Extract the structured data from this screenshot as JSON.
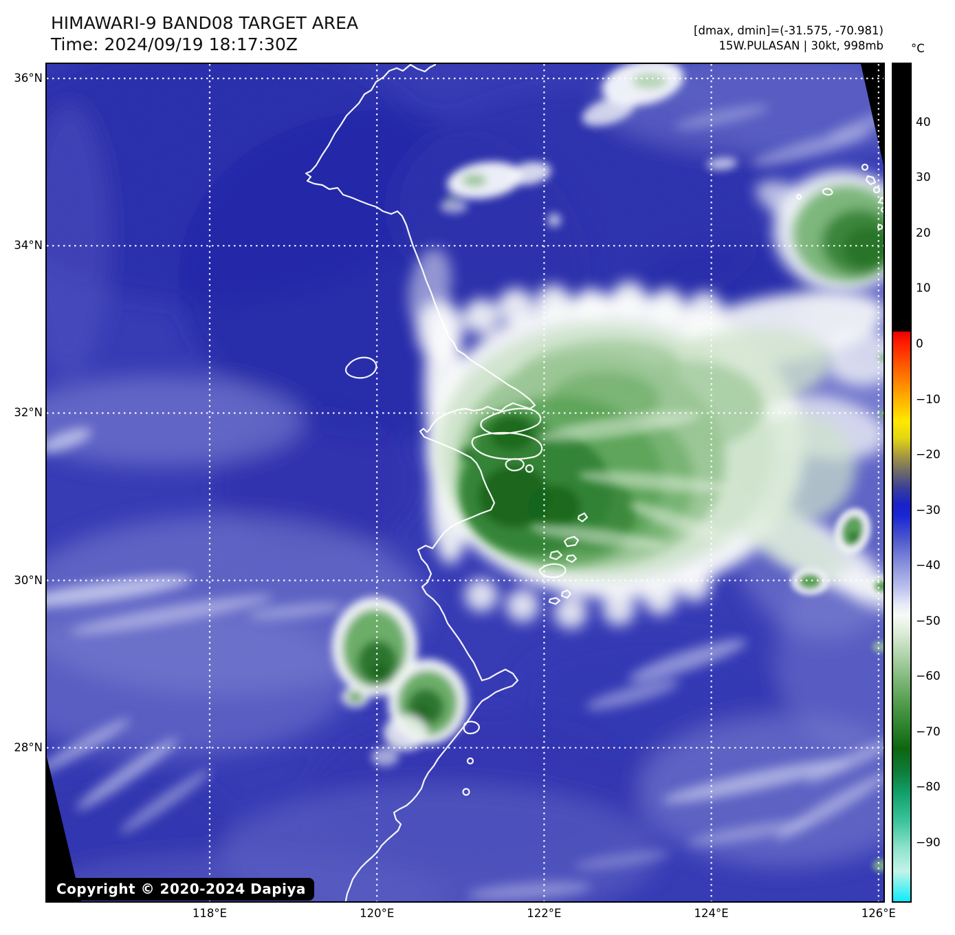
{
  "header": {
    "title": "HIMAWARI-9 BAND08 TARGET AREA",
    "time": "Time: 2024/09/19 18:17:30Z",
    "annotation_line1": "[dmax, dmin]=(-31.575, -70.981)",
    "annotation_line2": "15W.PULASAN | 30kt, 998mb"
  },
  "colorbar": {
    "unit": "°C",
    "ticks": [
      {
        "label": "40",
        "value": 40
      },
      {
        "label": "30",
        "value": 30
      },
      {
        "label": "20",
        "value": 20
      },
      {
        "label": "10",
        "value": 10
      },
      {
        "label": "0",
        "value": 0
      },
      {
        "label": "−10",
        "value": -10
      },
      {
        "label": "−20",
        "value": -20
      },
      {
        "label": "−30",
        "value": -30
      },
      {
        "label": "−40",
        "value": -40
      },
      {
        "label": "−50",
        "value": -50
      },
      {
        "label": "−60",
        "value": -60
      },
      {
        "label": "−70",
        "value": -70
      },
      {
        "label": "−80",
        "value": -80
      },
      {
        "label": "−90",
        "value": -90
      }
    ],
    "gradient_stops": [
      {
        "pct": 0,
        "color": "#000000"
      },
      {
        "pct": 31.9,
        "color": "#000000"
      },
      {
        "pct": 32.0,
        "color": "#ee0000"
      },
      {
        "pct": 33.4,
        "color": "#ff1e00"
      },
      {
        "pct": 36.8,
        "color": "#ff6a00"
      },
      {
        "pct": 40.1,
        "color": "#ffb300"
      },
      {
        "pct": 42.7,
        "color": "#ffe900"
      },
      {
        "pct": 44.7,
        "color": "#e3d513"
      },
      {
        "pct": 46.7,
        "color": "#a89a3e"
      },
      {
        "pct": 48.7,
        "color": "#6f6a68"
      },
      {
        "pct": 50.6,
        "color": "#3a3f99"
      },
      {
        "pct": 52.6,
        "color": "#1822c8"
      },
      {
        "pct": 54.0,
        "color": "#1a26d4"
      },
      {
        "pct": 56.6,
        "color": "#4a55cc"
      },
      {
        "pct": 59.9,
        "color": "#8b93dd"
      },
      {
        "pct": 62.6,
        "color": "#bcc2ec"
      },
      {
        "pct": 64.6,
        "color": "#e8ebf8"
      },
      {
        "pct": 65.9,
        "color": "#f8faf5"
      },
      {
        "pct": 67.9,
        "color": "#dcecd8"
      },
      {
        "pct": 70.5,
        "color": "#b2d5ad"
      },
      {
        "pct": 73.2,
        "color": "#83bb7e"
      },
      {
        "pct": 76.5,
        "color": "#4f9a4b"
      },
      {
        "pct": 79.8,
        "color": "#257c25"
      },
      {
        "pct": 81.8,
        "color": "#0e650f"
      },
      {
        "pct": 84.5,
        "color": "#0f7c3a"
      },
      {
        "pct": 87.1,
        "color": "#12a06b"
      },
      {
        "pct": 90.4,
        "color": "#3cc39b"
      },
      {
        "pct": 93.7,
        "color": "#8fe3cd"
      },
      {
        "pct": 96.4,
        "color": "#c3f3e8"
      },
      {
        "pct": 98.4,
        "color": "#5ff0ef"
      },
      {
        "pct": 100,
        "color": "#0cecff"
      }
    ]
  },
  "map": {
    "grid": {
      "longitudes": [
        {
          "label": "118°E",
          "deg": 118
        },
        {
          "label": "120°E",
          "deg": 120
        },
        {
          "label": "122°E",
          "deg": 122
        },
        {
          "label": "124°E",
          "deg": 124
        },
        {
          "label": "126°E",
          "deg": 126
        }
      ],
      "latitudes": [
        {
          "label": "36°N",
          "deg": 36
        },
        {
          "label": "34°N",
          "deg": 34
        },
        {
          "label": "32°N",
          "deg": 32
        },
        {
          "label": "30°N",
          "deg": 30
        },
        {
          "label": "28°N",
          "deg": 28
        }
      ]
    },
    "copyright": "Copyright © 2020-2024 Dapiya",
    "colors": {
      "sea_warm_blue": "#3136b3",
      "cold_cloud_green": "#2d7e2e",
      "cirrus_white": "#f5f8f7",
      "coastline": "#ffffff"
    }
  }
}
